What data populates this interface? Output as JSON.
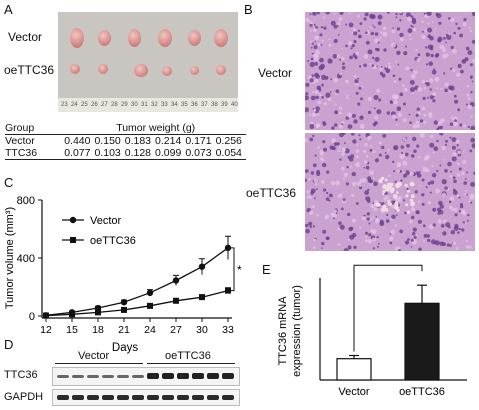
{
  "panels": {
    "a": "A",
    "b": "B",
    "c": "C",
    "d": "D",
    "e": "E"
  },
  "panelA": {
    "row_labels": [
      "Vector",
      "oeTTC36"
    ],
    "ruler_ticks": [
      "23",
      "24",
      "25",
      "26",
      "27",
      "28",
      "29",
      "30",
      "31",
      "32",
      "33",
      "34",
      "35",
      "36",
      "37",
      "38",
      "39",
      "40"
    ],
    "table": {
      "header_group": "Group",
      "header_weight": "Tumor weight (g)",
      "rows": [
        {
          "group": "Vector",
          "values": [
            "0.440",
            "0.150",
            "0.183",
            "0.214",
            "0.171",
            "0.256"
          ]
        },
        {
          "group": "TTC36",
          "values": [
            "0.077",
            "0.103",
            "0.128",
            "0.099",
            "0.073",
            "0.054"
          ]
        }
      ]
    }
  },
  "panelB": {
    "row_labels": [
      "Vector",
      "oeTTC36"
    ]
  },
  "chart_data": [
    {
      "type": "line",
      "ylabel": "Tumor volume (mm³)",
      "xlabel": "Days",
      "x": [
        12,
        15,
        18,
        21,
        24,
        27,
        30,
        33
      ],
      "xlim": [
        12,
        33
      ],
      "ylim": [
        0,
        800
      ],
      "yticks": [
        0,
        400,
        800
      ],
      "series": [
        {
          "name": "Vector",
          "marker": "circle",
          "values": [
            5,
            25,
            55,
            95,
            160,
            245,
            340,
            470
          ],
          "errors": [
            3,
            8,
            12,
            15,
            22,
            35,
            55,
            80
          ]
        },
        {
          "name": "oeTTC36",
          "marker": "square",
          "values": [
            3,
            12,
            25,
            42,
            70,
            105,
            130,
            175
          ],
          "errors": [
            2,
            4,
            6,
            8,
            10,
            14,
            16,
            20
          ]
        }
      ],
      "annotation": "*"
    },
    {
      "type": "bar",
      "ylabel": "TTC36 mRNA\nexpression (tumor)",
      "categories": [
        "Vector",
        "oeTTC36"
      ],
      "values": [
        1.0,
        3.6
      ],
      "errors": [
        0.15,
        0.85
      ],
      "ylim": [
        0,
        4.6
      ],
      "colors": [
        "#ffffff",
        "#1a1a1a"
      ],
      "annotation": "***"
    }
  ],
  "panelD": {
    "groups": [
      "Vector",
      "oeTTC36"
    ],
    "bands": [
      "TTC36",
      "GAPDH"
    ],
    "xlabel": "Days"
  }
}
